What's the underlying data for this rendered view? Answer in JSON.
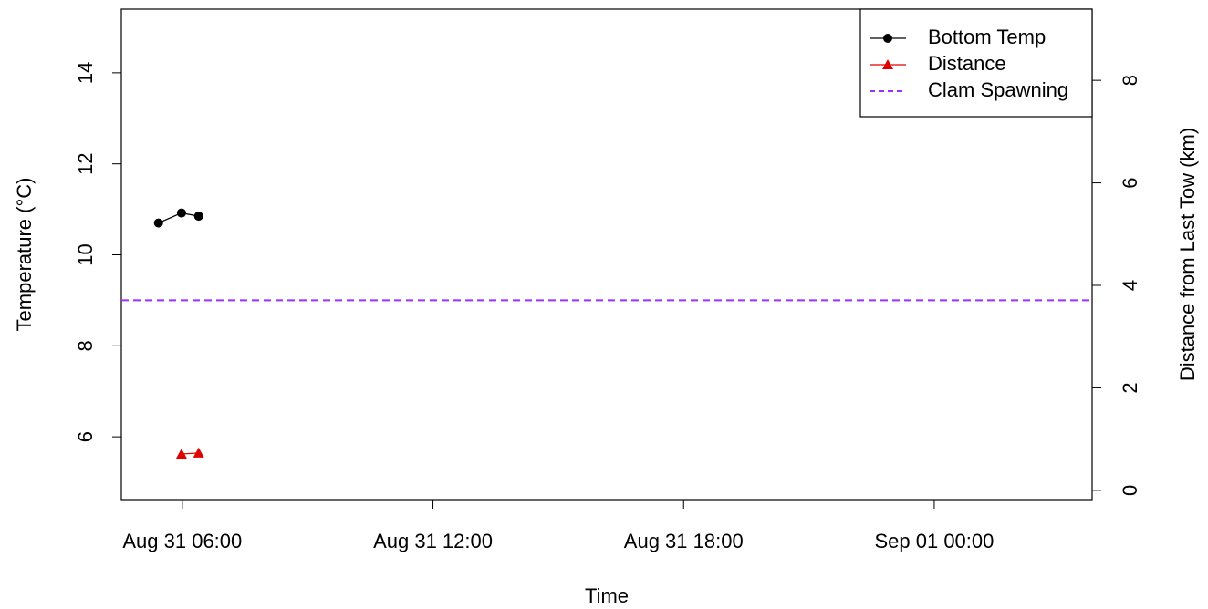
{
  "chart_data": {
    "type": "line",
    "x_label": "Time",
    "y_label": "Temperature (°C)",
    "y2_label": "Distance from Last Tow (km)",
    "xlim": [
      4.54,
      27.78
    ],
    "xticks": [
      {
        "value": 6,
        "label": "Aug 31 06:00"
      },
      {
        "value": 12,
        "label": "Aug 31 12:00"
      },
      {
        "value": 18,
        "label": "Aug 31 18:00"
      },
      {
        "value": 24,
        "label": "Sep 01 00:00"
      }
    ],
    "ylim": [
      4.62,
      15.4
    ],
    "yticks": [
      6,
      8,
      10,
      12,
      14
    ],
    "y2lim": [
      -0.18,
      9.39
    ],
    "y2ticks": [
      0,
      2,
      4,
      6,
      8
    ],
    "legend": "top-right",
    "series": [
      {
        "name": "Bottom Temp",
        "color": "#000000",
        "marker": "circle",
        "x": [
          5.43,
          5.98,
          6.39
        ],
        "values": [
          10.7,
          10.92,
          10.85
        ]
      },
      {
        "name": "Distance",
        "color": "#e00000",
        "marker": "triangle",
        "axis": "y2",
        "x": [
          5.98,
          6.39
        ],
        "values": [
          0.71,
          0.73
        ]
      },
      {
        "name": "Clam Spawning",
        "color": "#9b30ff",
        "style": "dashed",
        "values": [
          9
        ]
      }
    ]
  }
}
